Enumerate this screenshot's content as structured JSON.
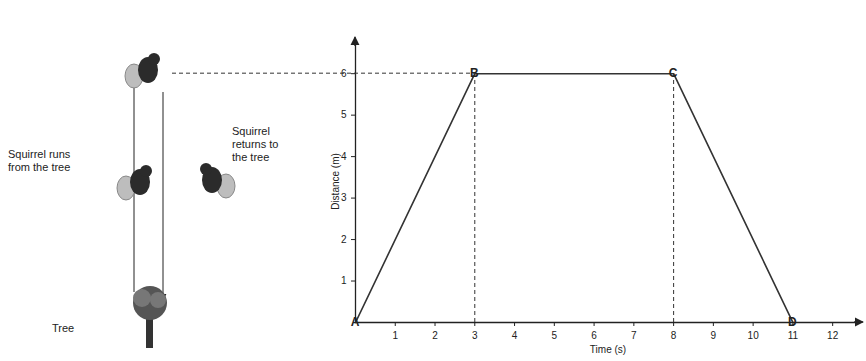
{
  "chart_data": {
    "type": "line",
    "x": [
      0,
      3,
      8,
      11
    ],
    "values": [
      0,
      6,
      6,
      0
    ],
    "point_labels": [
      "A",
      "B",
      "C",
      "D"
    ],
    "xlabel": "Time (s)",
    "ylabel": "Distance (m)",
    "xlim": [
      0,
      12.7
    ],
    "ylim": [
      0,
      6.8
    ],
    "xticks": [
      1,
      2,
      3,
      4,
      5,
      6,
      7,
      8,
      9,
      10,
      11,
      12
    ],
    "yticks": [
      1,
      2,
      3,
      4,
      5,
      6
    ],
    "color": "#333333",
    "grid": false,
    "annotations": [
      "Squirrel runs from the tree",
      "Squirrel returns to the tree",
      "Tree"
    ]
  }
}
